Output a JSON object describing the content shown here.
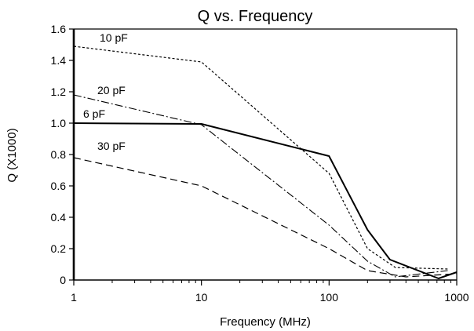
{
  "chart_data": {
    "type": "line",
    "title": "Q vs. Frequency",
    "xlabel": "Frequency (MHz)",
    "ylabel": "Q (X1000)",
    "x_scale": "log",
    "xlim": [
      1,
      1000
    ],
    "ylim": [
      0,
      1.6
    ],
    "x_ticks": [
      "1",
      "10",
      "100",
      "1000"
    ],
    "y_ticks": [
      "0",
      "0.2",
      "0.4",
      "0.6",
      "0.8",
      "1.0",
      "1.2",
      "1.4",
      "1.6"
    ],
    "grid": false,
    "series": [
      {
        "name": "10 pF",
        "style": "dotted",
        "points": [
          [
            1,
            1.49
          ],
          [
            10,
            1.39
          ],
          [
            100,
            0.68
          ],
          [
            200,
            0.2
          ],
          [
            330,
            0.08
          ],
          [
            850,
            0.07
          ]
        ]
      },
      {
        "name": "20 pF",
        "style": "dash-dot",
        "points": [
          [
            1,
            1.18
          ],
          [
            10,
            0.99
          ],
          [
            100,
            0.35
          ],
          [
            200,
            0.12
          ],
          [
            330,
            0.02
          ],
          [
            850,
            0.06
          ]
        ]
      },
      {
        "name": "6 pF",
        "style": "solid",
        "points": [
          [
            1,
            1.0
          ],
          [
            10,
            0.995
          ],
          [
            100,
            0.79
          ],
          [
            200,
            0.32
          ],
          [
            300,
            0.13
          ],
          [
            720,
            0.01
          ],
          [
            1000,
            0.05
          ]
        ]
      },
      {
        "name": "30 pF",
        "style": "dashed",
        "points": [
          [
            1,
            0.78
          ],
          [
            10,
            0.6
          ],
          [
            100,
            0.2
          ],
          [
            200,
            0.06
          ],
          [
            400,
            0.02
          ],
          [
            1000,
            0.04
          ]
        ]
      }
    ]
  }
}
